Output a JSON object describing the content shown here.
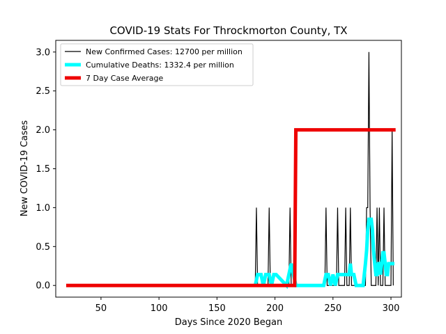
{
  "chart_data": {
    "type": "line",
    "title": "COVID-19 Stats For Throckmorton County, TX",
    "xlabel": "Days Since 2020 Began",
    "ylabel": "New COVID-19 Cases",
    "xlim": [
      11,
      309
    ],
    "ylim": [
      -0.15,
      3.15
    ],
    "xticks": [
      50,
      100,
      150,
      200,
      250,
      300
    ],
    "yticks": [
      0.0,
      0.5,
      1.0,
      1.5,
      2.0,
      2.5,
      3.0
    ],
    "ytick_labels": [
      "0.0",
      "0.5",
      "1.0",
      "1.5",
      "2.0",
      "2.5",
      "3.0"
    ],
    "grid": false,
    "legend_position": "top-left",
    "series": [
      {
        "name": "New Confirmed Cases: 12700 per million",
        "color": "#000000",
        "x": [
          183,
          184,
          185,
          194,
          195,
          196,
          212,
          213,
          214,
          243,
          244,
          245,
          253,
          254,
          255,
          260,
          261,
          262,
          264,
          265,
          266,
          278,
          279,
          280,
          281,
          282,
          283,
          287,
          288,
          289,
          290,
          291,
          293,
          294,
          295,
          300,
          301,
          302
        ],
        "y": [
          0,
          1,
          0,
          0,
          1,
          0,
          0,
          1,
          0,
          0,
          1,
          0,
          0,
          1,
          0,
          0,
          1,
          0,
          0,
          1,
          0,
          0,
          1,
          1,
          3,
          1,
          0,
          0,
          1,
          0,
          1,
          0,
          0,
          1,
          0,
          0,
          2,
          0
        ]
      },
      {
        "name": "Cumulative Deaths: 1332.4 per million",
        "color": "#00ffff",
        "x": [
          183,
          185,
          188,
          190,
          192,
          195,
          197,
          199,
          201,
          210,
          212,
          214,
          216,
          218,
          220,
          224,
          230,
          236,
          242,
          244,
          246,
          248,
          250,
          252,
          254,
          256,
          258,
          260,
          262,
          264,
          265,
          266,
          268,
          270,
          272,
          274,
          276,
          278,
          279,
          280,
          281,
          282,
          283,
          284,
          285,
          286,
          287,
          288,
          289,
          290,
          291,
          292,
          293,
          294,
          295,
          296,
          297,
          298,
          299,
          300,
          301,
          302,
          303
        ],
        "y": [
          0.0,
          0.14,
          0.14,
          0.0,
          0.14,
          0.14,
          0.0,
          0.14,
          0.14,
          0.0,
          0.14,
          0.28,
          0.14,
          0.0,
          0.0,
          0.0,
          0.0,
          0.0,
          0.0,
          0.14,
          0.14,
          0.0,
          0.14,
          0.0,
          0.14,
          0.14,
          0.14,
          0.14,
          0.14,
          0.14,
          0.28,
          0.14,
          0.14,
          0.0,
          0.0,
          0.0,
          0.0,
          0.28,
          0.45,
          0.72,
          0.85,
          0.85,
          0.85,
          0.72,
          0.45,
          0.28,
          0.14,
          0.14,
          0.28,
          0.28,
          0.14,
          0.28,
          0.42,
          0.42,
          0.28,
          0.14,
          0.14,
          0.28,
          0.28,
          0.28,
          0.28,
          0.28,
          0.28
        ]
      },
      {
        "name": "7 Day Case Average",
        "color": "#ee0000",
        "x": [
          20,
          217,
          218,
          304
        ],
        "y": [
          0,
          0,
          2,
          2
        ]
      }
    ]
  }
}
